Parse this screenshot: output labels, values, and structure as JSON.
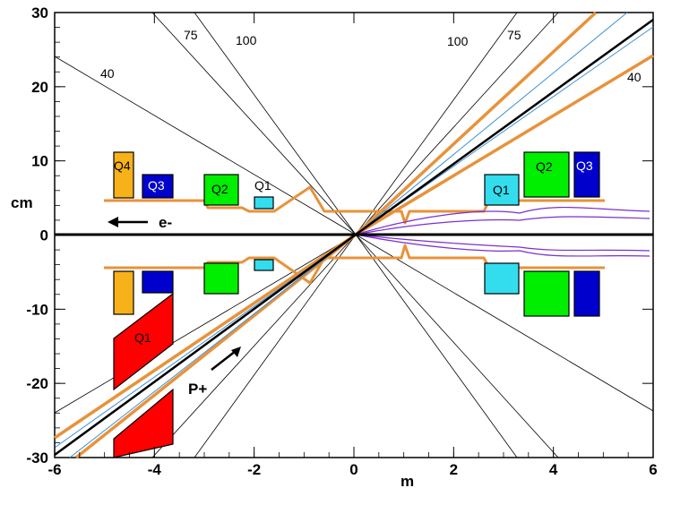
{
  "axes": {
    "x_title": "m",
    "y_title": "cm",
    "x_ticks": [
      "-6",
      "-4",
      "-2",
      "0",
      "2",
      "4",
      "6"
    ],
    "y_ticks": [
      "30",
      "20",
      "10",
      "0",
      "-10",
      "-20",
      "-30"
    ],
    "xlim": [
      -6,
      6
    ],
    "ylim": [
      -30,
      30
    ]
  },
  "angle_labels": {
    "left_75": "75",
    "left_100": "100",
    "left_40": "40",
    "right_100": "100",
    "right_75": "75",
    "right_40": "40"
  },
  "magnets": {
    "q4": "Q4",
    "q3_left": "Q3",
    "q2_left": "Q2",
    "q1_left": "Q1",
    "q1_right": "Q1",
    "q2_right": "Q2",
    "q3_right": "Q3",
    "q1_lower": "Q1"
  },
  "beams": {
    "electron": "e-",
    "proton": "P+"
  },
  "colors": {
    "orange": "#e8923a",
    "red": "#ff0000",
    "green": "#00ee00",
    "cyan": "#33ddee",
    "navy": "#0000cc",
    "gold": "#f7b21a",
    "purple": "#7a2fd0",
    "blue_line": "#3c8fd6"
  }
}
